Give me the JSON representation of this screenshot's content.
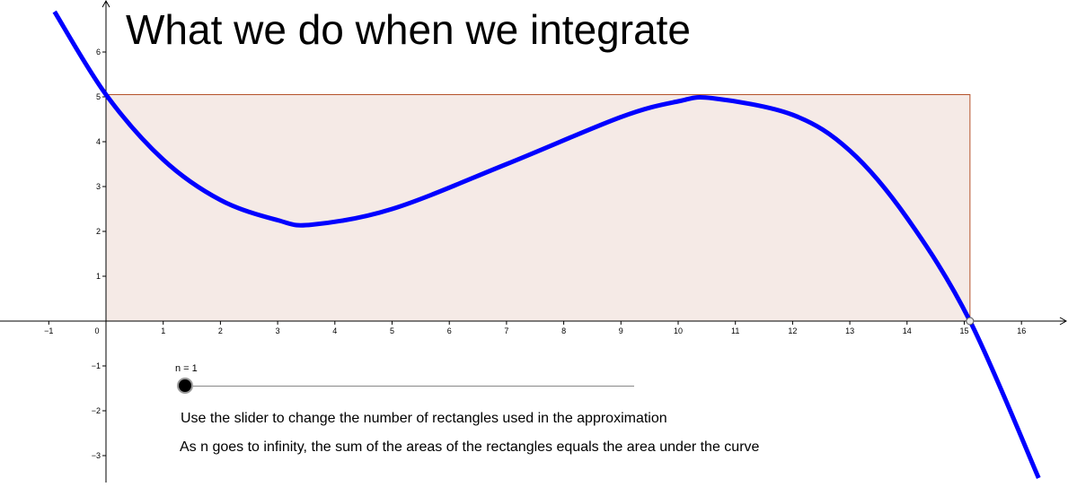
{
  "title": "What we do when we integrate",
  "slider": {
    "label_text": "n = 1",
    "value": 1,
    "min": 1,
    "max": 100
  },
  "notes": [
    "Use the slider to change the number of rectangles used in the approximation",
    "As n goes to infinity, the sum of the areas of the rectangles equals the area under the curve"
  ],
  "colors": {
    "curve": "#0000ff",
    "rectangle_fill": "#f5eae6",
    "rectangle_stroke": "#b5532a",
    "axis": "#000000"
  },
  "chart_data": {
    "type": "area",
    "x_ticks": [
      "−1",
      "0",
      "1",
      "2",
      "3",
      "4",
      "5",
      "6",
      "7",
      "8",
      "9",
      "10",
      "11",
      "12",
      "13",
      "14",
      "15",
      "16"
    ],
    "y_ticks": [
      "−3",
      "−2",
      "−1",
      "1",
      "2",
      "3",
      "4",
      "5",
      "6"
    ],
    "xlim": [
      -1.7,
      16.8
    ],
    "ylim": [
      -3.6,
      7.1
    ],
    "curve_points": {
      "x": [
        -0.9,
        0,
        1,
        2,
        3,
        3.6,
        5,
        7,
        9,
        10,
        10.6,
        12,
        13,
        14,
        15.1,
        16.3
      ],
      "y": [
        6.9,
        5.05,
        3.6,
        2.7,
        2.25,
        2.15,
        2.5,
        3.5,
        4.55,
        4.9,
        4.97,
        4.6,
        3.8,
        2.3,
        0,
        -3.5
      ]
    },
    "rectangles": [
      {
        "x0": 0,
        "x1": 15.1,
        "height": 5.05
      }
    ],
    "grid": false
  }
}
